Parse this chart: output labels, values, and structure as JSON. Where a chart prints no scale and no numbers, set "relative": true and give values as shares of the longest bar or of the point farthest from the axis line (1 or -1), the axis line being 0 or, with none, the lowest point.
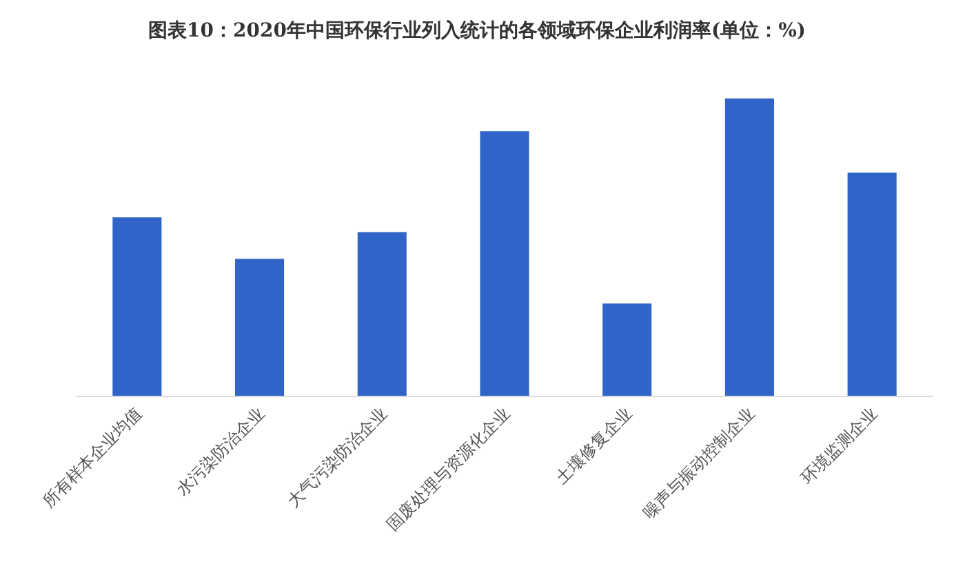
{
  "chart_data": {
    "type": "bar",
    "title": "图表10：2020年中国环保行业列入统计的各领域环保企业利润率(单位：%)",
    "categories": [
      "所有样本企业均值",
      "水污染防治企业",
      "大气污染防治企业",
      "固废处理与资源化企业",
      "土壤修复企业",
      "噪声与振动控制企业",
      "环境监测企业"
    ],
    "values": [
      0.6,
      0.46,
      0.55,
      0.89,
      0.31,
      1,
      0.75
    ],
    "color": "#3064c8",
    "relative": true
  }
}
